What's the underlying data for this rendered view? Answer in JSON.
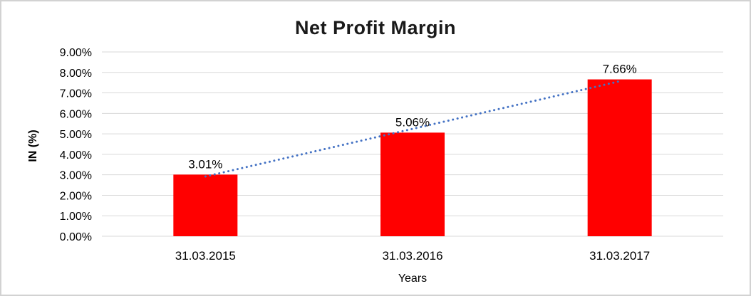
{
  "chart_data": {
    "type": "bar",
    "title": "Net Profit Margin",
    "xlabel": "Years",
    "ylabel": "IN (%)",
    "categories": [
      "31.03.2015",
      "31.03.2016",
      "31.03.2017"
    ],
    "values": [
      3.01,
      5.06,
      7.66
    ],
    "data_labels": [
      "3.01%",
      "5.06%",
      "7.66%"
    ],
    "ylim": [
      0,
      9
    ],
    "ytick_step": 1,
    "ytick_labels": [
      "0.00%",
      "1.00%",
      "2.00%",
      "3.00%",
      "4.00%",
      "5.00%",
      "6.00%",
      "7.00%",
      "8.00%",
      "9.00%"
    ],
    "grid": "on",
    "legend": "none",
    "bar_color": "#ff0000",
    "gridline_color": "#d9d9d9",
    "trendline": {
      "type": "linear",
      "style": "dotted",
      "color": "#4472c4"
    },
    "frame_border_color": "#d2d2d2"
  }
}
